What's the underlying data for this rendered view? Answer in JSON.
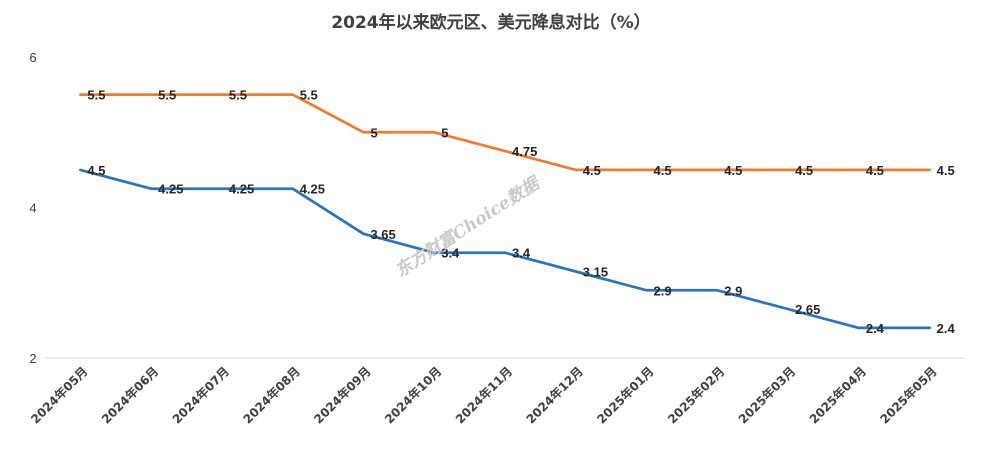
{
  "chart_data": {
    "type": "line",
    "title": "2024年以来欧元区、美元降息对比（%）",
    "categories": [
      "2024年05月",
      "2024年06月",
      "2024年07月",
      "2024年08月",
      "2024年09月",
      "2024年10月",
      "2024年11月",
      "2024年12月",
      "2025年01月",
      "2025年02月",
      "2025年03月",
      "2025年04月",
      "2025年05月"
    ],
    "series": [
      {
        "values": [
          5.5,
          5.5,
          5.5,
          5.5,
          5,
          5,
          4.75,
          4.5,
          4.5,
          4.5,
          4.5,
          4.5,
          4.5
        ],
        "color": "#ED7D31"
      },
      {
        "values": [
          4.5,
          4.25,
          4.25,
          4.25,
          3.65,
          3.4,
          3.4,
          3.15,
          2.9,
          2.9,
          2.65,
          2.4,
          2.4
        ],
        "color": "#2E75B6"
      }
    ],
    "y_ticks": [
      2,
      4,
      6
    ],
    "ylim": [
      2,
      6
    ],
    "grid": false,
    "legend": "none"
  },
  "watermark": "东方财富Choice数据"
}
